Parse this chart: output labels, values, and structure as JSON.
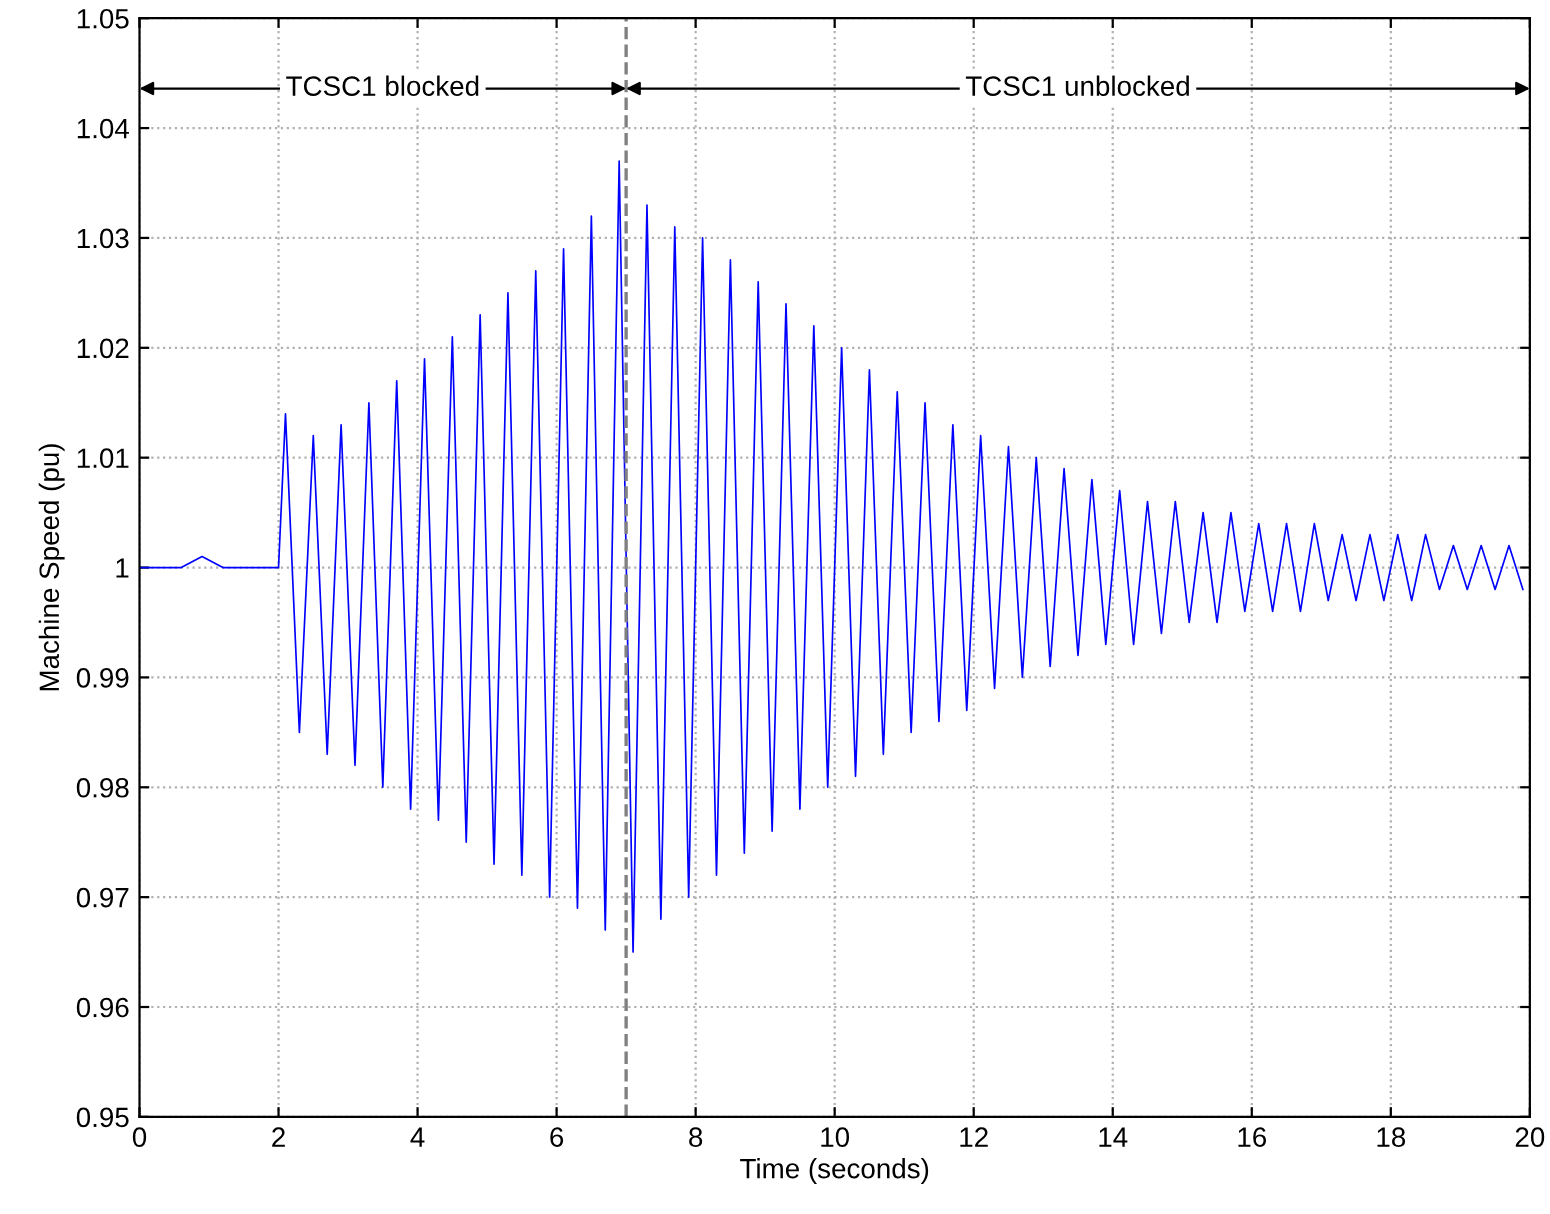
{
  "chart_data": {
    "type": "line",
    "xlabel": "Time (seconds)",
    "ylabel": "Machine Speed (pu)",
    "xlim": [
      0,
      20
    ],
    "ylim": [
      0.95,
      1.05
    ],
    "xticks": [
      0,
      2,
      4,
      6,
      8,
      10,
      12,
      14,
      16,
      18,
      20
    ],
    "yticks": [
      0.95,
      0.96,
      0.97,
      0.98,
      0.99,
      {
        "value": 1,
        "label": "1"
      },
      1.01,
      1.02,
      1.03,
      1.04,
      1.05
    ],
    "grid": true,
    "line_style": "solid",
    "marker": "none",
    "ref_lines": [
      {
        "axis": "x",
        "value": 7,
        "label": null,
        "color": "#808080",
        "line_style": "dashed"
      }
    ],
    "annotations": [
      "TCSC1 blocked",
      "TCSC1 unblocked"
    ],
    "series": [
      {
        "color": "#0000ff",
        "x": [
          0,
          0.6,
          0.9,
          1.2,
          2.0,
          2.1,
          2.3,
          2.5,
          2.7,
          2.9,
          3.1,
          3.3,
          3.5,
          3.7,
          3.9,
          4.1,
          4.3,
          4.5,
          4.7,
          4.9,
          5.1,
          5.3,
          5.5,
          5.7,
          5.9,
          6.1,
          6.3,
          6.5,
          6.7,
          6.9,
          7.1,
          7.3,
          7.5,
          7.7,
          7.9,
          8.1,
          8.3,
          8.5,
          8.7,
          8.9,
          9.1,
          9.3,
          9.5,
          9.7,
          9.9,
          10.1,
          10.3,
          10.5,
          10.7,
          10.9,
          11.1,
          11.3,
          11.5,
          11.7,
          11.9,
          12.1,
          12.3,
          12.5,
          12.7,
          12.9,
          13.1,
          13.3,
          13.5,
          13.7,
          13.9,
          14.1,
          14.3,
          14.5,
          14.7,
          14.9,
          15.1,
          15.3,
          15.5,
          15.7,
          15.9,
          16.1,
          16.3,
          16.5,
          16.7,
          16.9,
          17.1,
          17.3,
          17.5,
          17.7,
          17.9,
          18.1,
          18.3,
          18.5,
          18.7,
          18.9,
          19.1,
          19.3,
          19.5,
          19.7,
          19.9
        ],
        "values": [
          1.0,
          1.0,
          1.001,
          1.0,
          1.0,
          1.014,
          0.985,
          1.012,
          0.983,
          1.013,
          0.982,
          1.015,
          0.98,
          1.017,
          0.978,
          1.019,
          0.977,
          1.021,
          0.975,
          1.023,
          0.973,
          1.025,
          0.972,
          1.027,
          0.97,
          1.029,
          0.969,
          1.032,
          0.967,
          1.037,
          0.965,
          1.033,
          0.968,
          1.031,
          0.97,
          1.03,
          0.972,
          1.028,
          0.974,
          1.026,
          0.976,
          1.024,
          0.978,
          1.022,
          0.98,
          1.02,
          0.981,
          1.018,
          0.983,
          1.016,
          0.985,
          1.015,
          0.986,
          1.013,
          0.987,
          1.012,
          0.989,
          1.011,
          0.99,
          1.01,
          0.991,
          1.009,
          0.992,
          1.008,
          0.993,
          1.007,
          0.993,
          1.006,
          0.994,
          1.006,
          0.995,
          1.005,
          0.995,
          1.005,
          0.996,
          1.004,
          0.996,
          1.004,
          0.996,
          1.004,
          0.997,
          1.003,
          0.997,
          1.003,
          0.997,
          1.003,
          0.997,
          1.003,
          0.998,
          1.002,
          0.998,
          1.002,
          0.998,
          1.002,
          0.998
        ]
      }
    ]
  }
}
